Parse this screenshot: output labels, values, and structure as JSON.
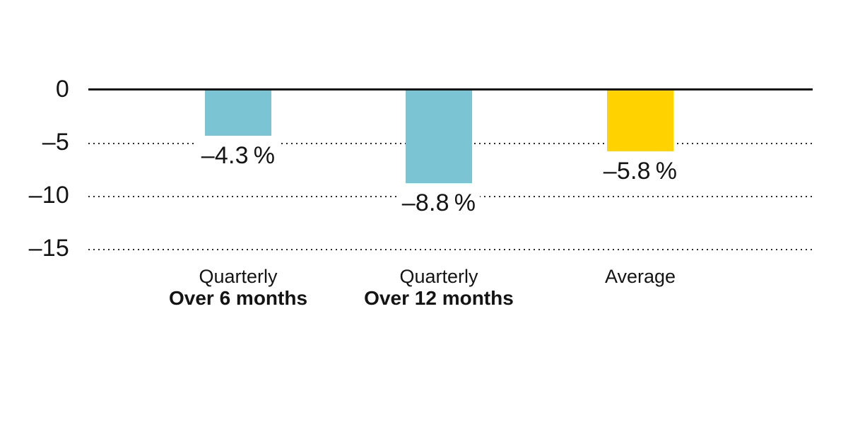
{
  "chart_data": {
    "type": "bar",
    "title": "",
    "orientation": "vertical",
    "unit": "%",
    "grid": "horizontal-dotted",
    "legend": "none",
    "y_axis": {
      "min": -15,
      "max": 0,
      "ticks": [
        {
          "value": 0,
          "label": "0"
        },
        {
          "value": -5,
          "label": "–5"
        },
        {
          "value": -10,
          "label": "–10"
        },
        {
          "value": -15,
          "label": "–15"
        }
      ]
    },
    "bars": [
      {
        "category_line1": "Quarterly",
        "category_line2": "Over 6 months",
        "value": -4.3,
        "value_label": "–4.3 %",
        "color": "#7AC4D4"
      },
      {
        "category_line1": "Quarterly",
        "category_line2": "Over 12 months",
        "value": -8.8,
        "value_label": "–8.8 %",
        "color": "#7AC4D4"
      },
      {
        "category_line1": "Average",
        "category_line2": "",
        "value": -5.8,
        "value_label": "–5.8 %",
        "color": "#FFD200"
      }
    ],
    "colors": {
      "bar_teal": "#7AC4D4",
      "bar_yellow": "#FFD200",
      "axis_line": "#141414",
      "gridline": "#2B2B2B",
      "text": "#141414",
      "background": "#FFFFFF"
    }
  }
}
